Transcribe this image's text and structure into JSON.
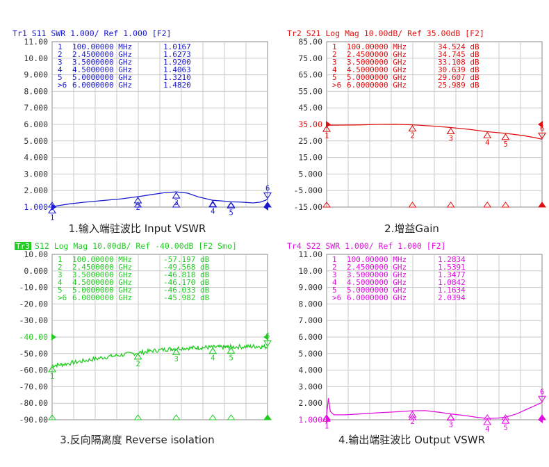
{
  "charts": [
    {
      "id": "s11",
      "type": "line",
      "color": "#1a1acc",
      "header": "Tr1 S11 SWR 1.000/ Ref 1.000 [F2]",
      "header_badge": "",
      "ylim": [
        1.0,
        11.0
      ],
      "yticks": [
        "11.00",
        "10.00",
        "9.000",
        "8.000",
        "7.000",
        "6.000",
        "5.000",
        "4.000",
        "3.000",
        "2.000",
        "1.000"
      ],
      "ref_label": "1.000",
      "ref_value": 1.0,
      "xlim": [
        0.1,
        6.0
      ],
      "x_unit": "GHz",
      "markers": [
        {
          "label": "1",
          "freq": "100.00000 MHz",
          "value": "1.0167",
          "x": 0.1,
          "y": 1.0167
        },
        {
          "label": "2",
          "freq": "2.4500000 GHz",
          "value": "1.6273",
          "x": 2.45,
          "y": 1.6273
        },
        {
          "label": "3",
          "freq": "3.5000000 GHz",
          "value": "1.9200",
          "x": 3.5,
          "y": 1.92
        },
        {
          "label": "4",
          "freq": "4.5000000 GHz",
          "value": "1.4063",
          "x": 4.5,
          "y": 1.4063
        },
        {
          "label": "5",
          "freq": "5.0000000 GHz",
          "value": "1.3210",
          "x": 5.0,
          "y": 1.321
        },
        {
          "label": ">6",
          "freq": "6.0000000 GHz",
          "value": "1.4820",
          "x": 6.0,
          "y": 1.482
        }
      ],
      "series": [
        {
          "x": [
            0.1,
            0.3,
            0.6,
            1.0,
            1.5,
            2.0,
            2.45,
            2.8,
            3.2,
            3.5,
            3.8,
            4.1,
            4.5,
            4.8,
            5.0,
            5.3,
            5.6,
            5.8,
            5.95,
            6.0
          ],
          "y": [
            1.02,
            1.1,
            1.2,
            1.3,
            1.4,
            1.5,
            1.63,
            1.75,
            1.88,
            1.92,
            1.85,
            1.62,
            1.41,
            1.36,
            1.32,
            1.3,
            1.25,
            1.3,
            1.42,
            1.48
          ]
        }
      ],
      "caption": "1.输入端驻波比 Input VSWR"
    },
    {
      "id": "s21",
      "type": "line",
      "color": "#e01010",
      "header": "Tr2 S21 Log Mag 10.00dB/ Ref 35.00dB [F2]",
      "header_badge": "",
      "ylim": [
        -15.0,
        85.0
      ],
      "yticks": [
        "85.00",
        "75.00",
        "65.00",
        "55.00",
        "45.00",
        "35.00",
        "25.00",
        "15.00",
        "5.000",
        "-5.000",
        "-15.00"
      ],
      "ref_label": "35.00",
      "ref_value": 35.0,
      "xlim": [
        0.1,
        6.0
      ],
      "x_unit": "GHz",
      "markers": [
        {
          "label": "1",
          "freq": "100.00000 MHz",
          "value": "34.524 dB",
          "x": 0.1,
          "y": 34.524
        },
        {
          "label": "2",
          "freq": "2.4500000 GHz",
          "value": "34.745 dB",
          "x": 2.45,
          "y": 34.745
        },
        {
          "label": "3",
          "freq": "3.5000000 GHz",
          "value": "33.108 dB",
          "x": 3.5,
          "y": 33.108
        },
        {
          "label": "4",
          "freq": "4.5000000 GHz",
          "value": "30.639 dB",
          "x": 4.5,
          "y": 30.639
        },
        {
          "label": "5",
          "freq": "5.0000000 GHz",
          "value": "29.607 dB",
          "x": 5.0,
          "y": 29.607
        },
        {
          "label": ">6",
          "freq": "6.0000000 GHz",
          "value": "25.989 dB",
          "x": 6.0,
          "y": 25.989
        }
      ],
      "series": [
        {
          "x": [
            0.1,
            0.5,
            1.0,
            1.5,
            2.0,
            2.45,
            3.0,
            3.5,
            4.0,
            4.5,
            5.0,
            5.5,
            5.8,
            6.0
          ],
          "y": [
            34.5,
            34.6,
            34.7,
            35.0,
            35.1,
            34.75,
            34.0,
            33.1,
            32.0,
            30.6,
            29.6,
            28.2,
            27.0,
            26.0
          ]
        }
      ],
      "caption": "2.增益Gain"
    },
    {
      "id": "s12",
      "type": "line",
      "color": "#22cc22",
      "header": "S12 Log Mag 10.00dB/ Ref -40.00dB [F2 Smo]",
      "header_badge": "Tr3",
      "ylim": [
        -90.0,
        10.0
      ],
      "yticks": [
        "10.00",
        "0.000",
        "-10.00",
        "-20.00",
        "-30.00",
        "-40.00",
        "-50.00",
        "-60.00",
        "-70.00",
        "-80.00",
        "-90.00"
      ],
      "ref_label": "-40.00",
      "ref_value": -40.0,
      "xlim": [
        0.1,
        6.0
      ],
      "x_unit": "GHz",
      "markers": [
        {
          "label": "1",
          "freq": "100.00000 MHz",
          "value": "-57.197 dB",
          "x": 0.1,
          "y": -57.197
        },
        {
          "label": "2",
          "freq": "2.4500000 GHz",
          "value": "-49.568 dB",
          "x": 2.45,
          "y": -49.568
        },
        {
          "label": "3",
          "freq": "3.5000000 GHz",
          "value": "-46.818 dB",
          "x": 3.5,
          "y": -46.818
        },
        {
          "label": "4",
          "freq": "4.5000000 GHz",
          "value": "-46.170 dB",
          "x": 4.5,
          "y": -46.17
        },
        {
          "label": "5",
          "freq": "5.0000000 GHz",
          "value": "-46.033 dB",
          "x": 5.0,
          "y": -46.033
        },
        {
          "label": ">6",
          "freq": "6.0000000 GHz",
          "value": "-45.982 dB",
          "x": 6.0,
          "y": -45.982
        }
      ],
      "series": [
        {
          "x": [
            0.1,
            0.4,
            0.8,
            1.2,
            1.6,
            2.0,
            2.45,
            2.8,
            3.2,
            3.5,
            3.9,
            4.2,
            4.5,
            4.8,
            5.0,
            5.4,
            5.7,
            6.0
          ],
          "y": [
            -57.2,
            -56.5,
            -55.0,
            -53.5,
            -52.0,
            -50.8,
            -49.6,
            -48.5,
            -47.5,
            -46.8,
            -46.6,
            -46.3,
            -46.2,
            -46.1,
            -46.0,
            -45.8,
            -45.6,
            -45.98
          ],
          "noise": 1.3
        }
      ],
      "caption": "3.反向隔离度 Reverse isolation"
    },
    {
      "id": "s22",
      "type": "line",
      "color": "#e010e0",
      "header": "Tr4 S22 SWR 1.000/ Ref 1.000 [F2]",
      "header_badge": "",
      "ylim": [
        1.0,
        11.0
      ],
      "yticks": [
        "11.00",
        "10.00",
        "9.000",
        "8.000",
        "7.000",
        "6.000",
        "5.000",
        "4.000",
        "3.000",
        "2.000",
        "1.000"
      ],
      "ref_label": "1.000",
      "ref_value": 1.0,
      "xlim": [
        0.1,
        6.0
      ],
      "x_unit": "GHz",
      "markers": [
        {
          "label": "1",
          "freq": "100.00000 MHz",
          "value": "1.2834",
          "x": 0.1,
          "y": 1.2834
        },
        {
          "label": "2",
          "freq": "2.4500000 GHz",
          "value": "1.5391",
          "x": 2.45,
          "y": 1.5391
        },
        {
          "label": "3",
          "freq": "3.5000000 GHz",
          "value": "1.3477",
          "x": 3.5,
          "y": 1.3477
        },
        {
          "label": "4",
          "freq": "4.5000000 GHz",
          "value": "1.0842",
          "x": 4.5,
          "y": 1.0842
        },
        {
          "label": "5",
          "freq": "5.0000000 GHz",
          "value": "1.1634",
          "x": 5.0,
          "y": 1.1634
        },
        {
          "label": ">6",
          "freq": "6.0000000 GHz",
          "value": "2.0394",
          "x": 6.0,
          "y": 2.0394
        }
      ],
      "series": [
        {
          "x": [
            0.1,
            0.15,
            0.2,
            0.3,
            0.6,
            1.0,
            1.5,
            2.0,
            2.45,
            2.8,
            3.2,
            3.5,
            3.9,
            4.2,
            4.5,
            4.8,
            5.0,
            5.3,
            5.6,
            5.8,
            6.0
          ],
          "y": [
            1.28,
            2.3,
            1.5,
            1.3,
            1.3,
            1.35,
            1.42,
            1.48,
            1.54,
            1.55,
            1.45,
            1.35,
            1.25,
            1.15,
            1.08,
            1.1,
            1.16,
            1.35,
            1.65,
            1.85,
            2.04
          ]
        }
      ],
      "caption": "4.输出端驻波比 Output VSWR"
    }
  ]
}
